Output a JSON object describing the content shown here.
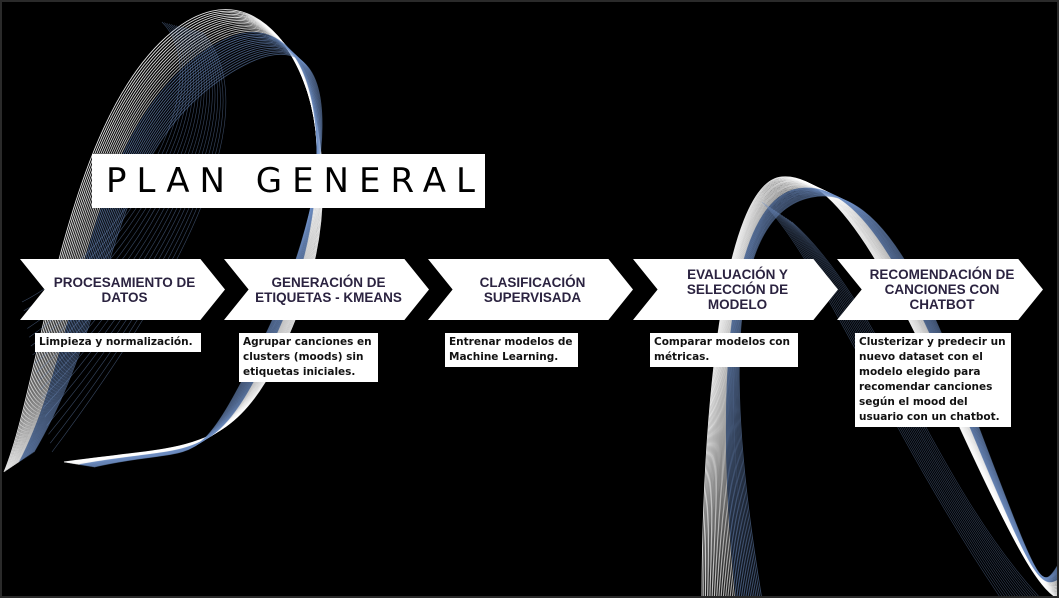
{
  "title": "PLAN GENERAL",
  "steps": [
    {
      "label": "PROCESAMIENTO DE DATOS",
      "description": "Limpieza y normalización."
    },
    {
      "label": "GENERACIÓN DE ETIQUETAS - KMEANS",
      "description": "Agrupar canciones en clusters (moods) sin etiquetas iniciales."
    },
    {
      "label": "CLASIFICACIÓN SUPERVISADA",
      "description": "Entrenar modelos de Machine Learning."
    },
    {
      "label": "EVALUACIÓN Y SELECCIÓN DE MODELO",
      "description": "Comparar modelos con métricas."
    },
    {
      "label": "RECOMENDACIÓN DE CANCIONES CON CHATBOT",
      "description": "Clusterizar y predecir un nuevo dataset con el modelo elegido para recomendar canciones según el mood del usuario con un chatbot."
    }
  ],
  "colors": {
    "background": "#000000",
    "chevron": "#ffffff",
    "chevron_text": "#2b2340",
    "wave": "#6f8fc4"
  }
}
